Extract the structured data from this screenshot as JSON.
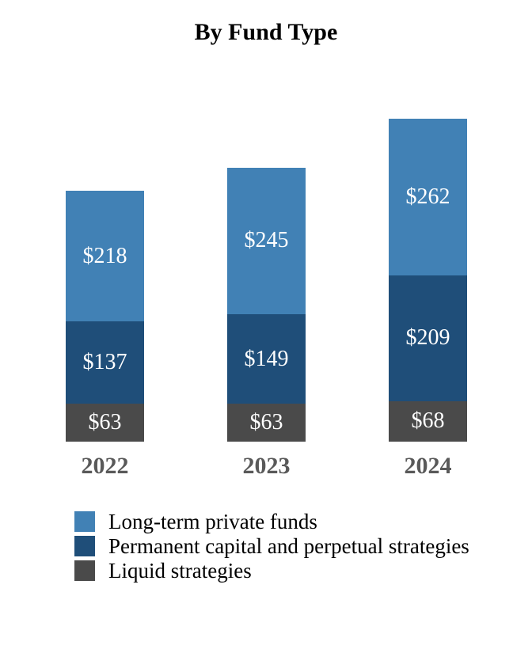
{
  "chart_data": {
    "type": "bar",
    "stacked": true,
    "title": "By Fund Type",
    "categories": [
      "2022",
      "2023",
      "2024"
    ],
    "series": [
      {
        "name": "Long-term private funds",
        "color": "#4181B5",
        "values": [
          218,
          245,
          262
        ]
      },
      {
        "name": "Permanent capital and perpetual strategies",
        "color": "#1F4E79",
        "values": [
          137,
          149,
          209
        ]
      },
      {
        "name": "Liquid strategies",
        "color": "#4A4A4A",
        "values": [
          63,
          63,
          68
        ]
      }
    ],
    "value_prefix": "$",
    "value_label_position": "inside-center",
    "legend_position": "bottom-left",
    "grid": false,
    "axes_visible": false,
    "text_colors": {
      "title": "#000000",
      "value_label": "#FFFFFF",
      "axis_label": "#595959",
      "legend_label": "#000000"
    }
  }
}
